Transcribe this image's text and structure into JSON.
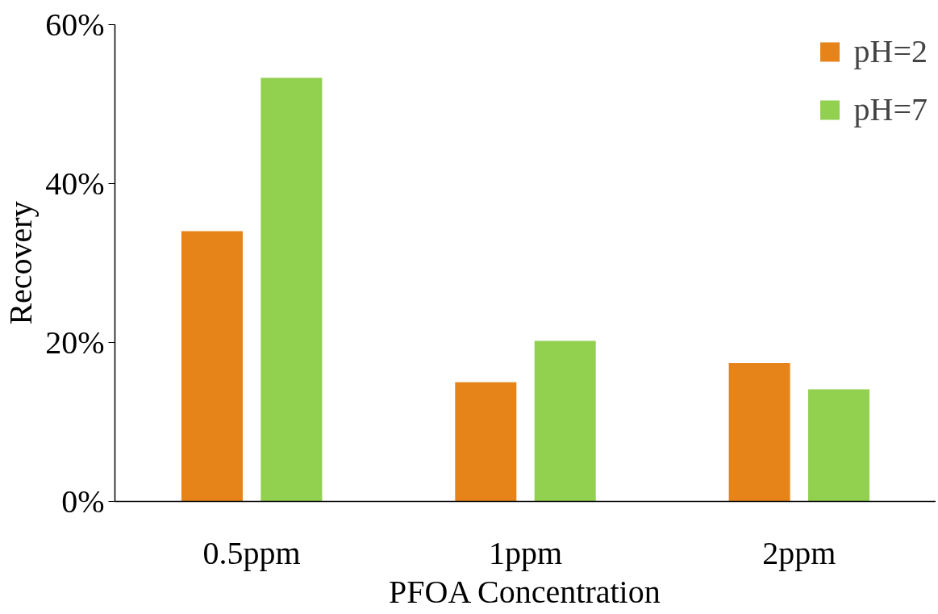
{
  "chart_data": {
    "type": "bar",
    "xlabel": "PFOA Concentration",
    "ylabel": "Recovery",
    "categories": [
      "0.5ppm",
      "1ppm",
      "2ppm"
    ],
    "series": [
      {
        "name": "pH=2",
        "color": "#e6841a",
        "values": [
          34.0,
          15.0,
          17.4
        ]
      },
      {
        "name": "pH=7",
        "color": "#92d050",
        "values": [
          53.3,
          20.2,
          14.1
        ]
      }
    ],
    "ylim": [
      0,
      60
    ],
    "yticks": [
      {
        "value": 0,
        "label": "0%"
      },
      {
        "value": 20,
        "label": "20%"
      },
      {
        "value": 40,
        "label": "40%"
      },
      {
        "value": 60,
        "label": "60%"
      }
    ],
    "grid": false,
    "legend": "top right"
  }
}
